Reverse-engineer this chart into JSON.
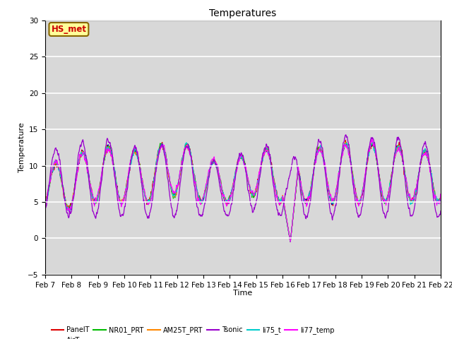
{
  "title": "Temperatures",
  "xlabel": "Time",
  "ylabel": "Temperature",
  "ylim": [
    -5,
    30
  ],
  "yticks": [
    -5,
    0,
    5,
    10,
    15,
    20,
    25,
    30
  ],
  "series_colors": {
    "PanelT": "#dd0000",
    "AirT": "#0000bb",
    "NR01_PRT": "#00bb00",
    "AM25T_PRT": "#ff8800",
    "Tsonic": "#9900cc",
    "li75_t": "#00cccc",
    "li77_temp": "#ff00ff"
  },
  "legend_label": "HS_met",
  "legend_box_facecolor": "#ffff99",
  "legend_box_edgecolor": "#886600",
  "legend_text_color": "#cc0000",
  "plot_bg": "#d8d8d8",
  "n_points": 1440,
  "days": 15
}
